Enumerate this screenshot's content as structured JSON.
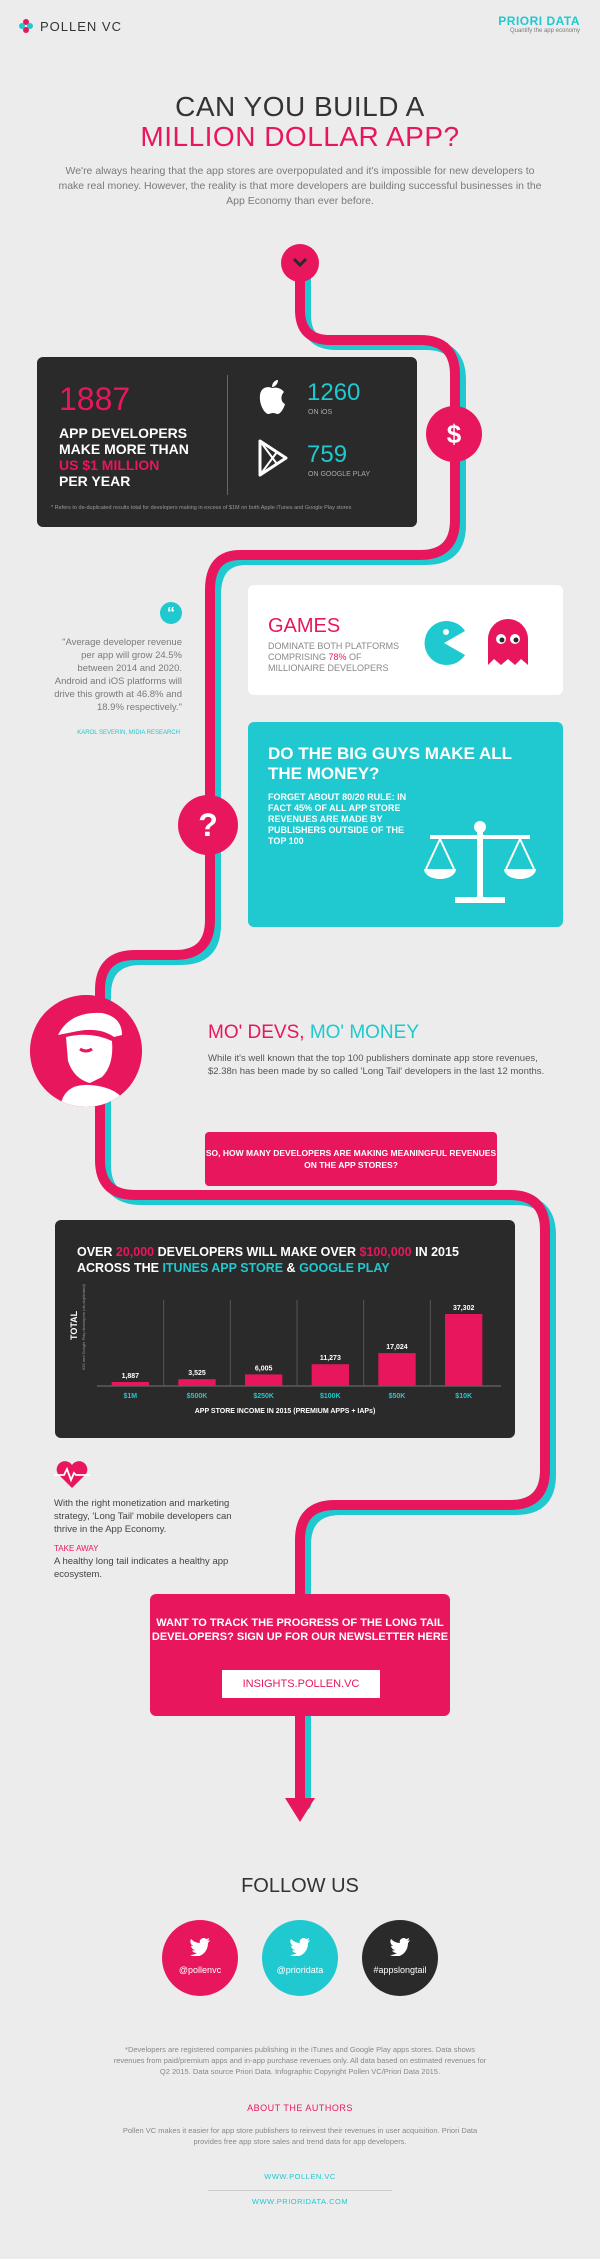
{
  "header": {
    "brand": "POLLEN VC",
    "partner": "PRIORI DATA",
    "partner_tagline": "Quantify the app economy"
  },
  "title": {
    "line1": "CAN YOU BUILD A",
    "line2": "MILLION DOLLAR APP?"
  },
  "intro": "We're always hearing that the app stores are overpopulated and it's impossible for new developers to make real money. However, the reality is that more developers are building successful businesses in the App Economy than ever before.",
  "stats": {
    "number": "1887",
    "line_a": "APP DEVELOPERS MAKE MORE THAN",
    "highlight": "US $1 MILLION",
    "line_b": "PER YEAR",
    "ios_num": "1260",
    "ios_label": "ON iOS",
    "gp_num": "759",
    "gp_label": "ON GOOGLE PLAY",
    "footnote": "* Refers to de-duplicated results total for developers making in excess of $1M on both Apple iTunes and Google Play stores"
  },
  "quote": {
    "text": "\"Average developer revenue per app will grow 24.5% between 2014 and 2020. Android and iOS platforms will drive this growth at 46.8% and 18.9% respectively.\"",
    "author": "KAROL SEVERIN, MIDIA RESEARCH"
  },
  "games": {
    "title": "GAMES",
    "pre": "DOMINATE BOTH PLATFORMS COMPRISING ",
    "pct": "78%",
    "post": " OF MILLIONAIRE DEVELOPERS"
  },
  "bigguys": {
    "title": "DO THE BIG GUYS MAKE ALL THE MONEY?",
    "text": "FORGET ABOUT 80/20 RULE: IN FACT 45% OF ALL APP STORE REVENUES ARE MADE BY PUBLISHERS OUTSIDE OF THE TOP 100"
  },
  "modevs": {
    "title_a": "MO' DEVS, ",
    "title_b": "MO' MONEY",
    "text": "While it's well known that the top 100 publishers dominate app store revenues, $2.38n has been made by so called 'Long Tail' developers in the last 12 months.",
    "banner": "SO, HOW MANY DEVELOPERS ARE MAKING MEANINGFUL REVENUES ON THE APP STORES?"
  },
  "chart_header": {
    "p1": "OVER ",
    "p2": "20,000",
    "p3": " DEVELOPERS WILL MAKE OVER ",
    "p4": "$100,000",
    "p5": " IN 2015 ACROSS THE ",
    "p6": "ITUNES APP STORE",
    "p7": " & ",
    "p8": "GOOGLE PLAY"
  },
  "chart_data": {
    "type": "bar",
    "categories": [
      "$1M",
      "$500K",
      "$250K",
      "$100K",
      "$50K",
      "$10K"
    ],
    "values": [
      1887,
      3525,
      6005,
      11273,
      17024,
      37302
    ],
    "labels": [
      "1,887",
      "3,525",
      "6,005",
      "11,273",
      "17,024",
      "37,302"
    ],
    "title": "",
    "xlabel": "APP STORE INCOME IN 2015 (PREMIUM APPS + IAPs)",
    "ylabel": "TOTAL",
    "ylabel_sub": "iOS and Google Play developers (de-duplicated)",
    "ylim": [
      0,
      37302
    ],
    "bar_color": "#e8175d",
    "label_color": "#1fc9cf"
  },
  "takeaway": {
    "text": "With the right monetization and marketing strategy, 'Long Tail' mobile developers can thrive in the App Economy.",
    "label": "TAKE AWAY",
    "text2": "A healthy long tail indicates a healthy app ecosystem."
  },
  "newsletter": {
    "text": "WANT TO TRACK THE PROGRESS OF THE LONG TAIL DEVELOPERS? SIGN UP FOR OUR NEWSLETTER HERE",
    "button": "INSIGHTS.POLLEN.VC"
  },
  "follow": {
    "title": "FOLLOW US",
    "accounts": [
      {
        "handle": "@pollenvc",
        "color": "#e8175d"
      },
      {
        "handle": "@prioridata",
        "color": "#1fc9cf"
      },
      {
        "handle": "#appslongtail",
        "color": "#2a2a2a"
      }
    ]
  },
  "footer": {
    "note": "*Developers are registered companies publishing in the iTunes and Google Play apps stores. Data shows revenues from paid/premium apps and in-app purchase revenues only. All data based on estimated revenues for Q2 2015. Data source Priori Data. Infographic Copyright Pollen VC/Priori Data 2015.",
    "about_title": "ABOUT THE AUTHORS",
    "about_text": "Pollen VC makes it easier for app store publishers to reinvest their revenues in user acquisition. Priori Data provides free app store sales and trend data for app developers.",
    "link1": "WWW.POLLEN.VC",
    "link2": "WWW.PRIORIDATA.COM"
  },
  "colors": {
    "pink": "#e8175d",
    "teal": "#1fc9cf",
    "dark": "#2a2a2a"
  }
}
